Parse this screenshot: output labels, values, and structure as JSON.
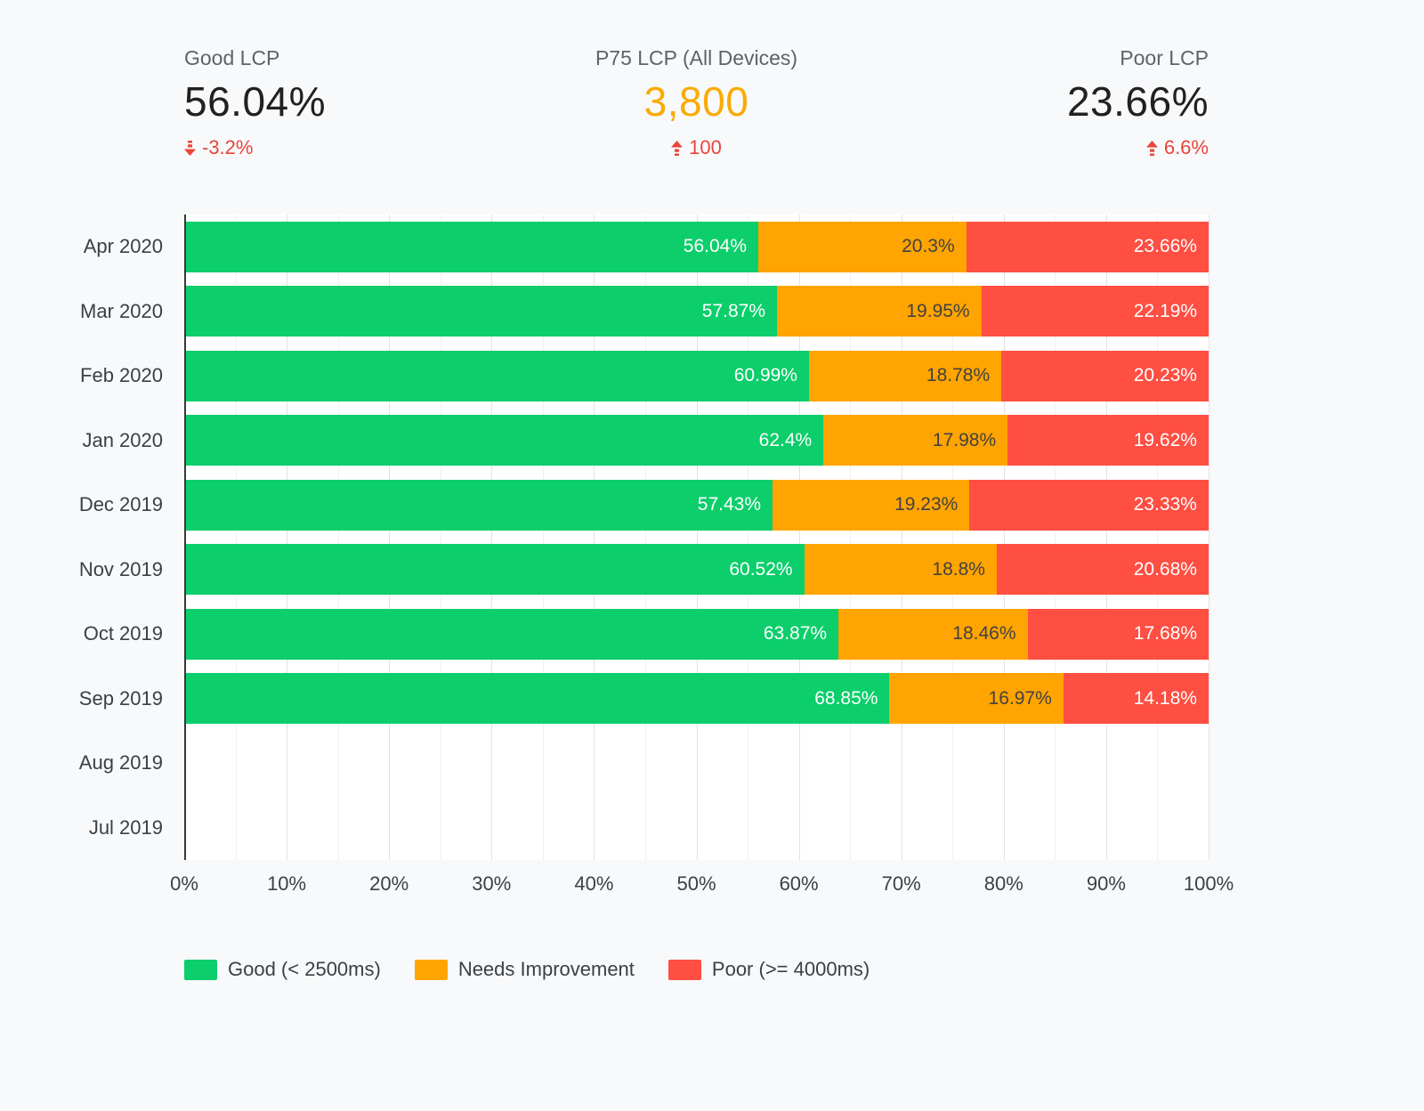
{
  "styles": {
    "page_background": "#f8f9fa",
    "plot_background": "#ffffff",
    "negative_color": "#e8453c",
    "text_primary": "#212121",
    "text_secondary": "#5f6368",
    "axis_text": "#3c4043",
    "good_color": "#0cce6b",
    "needs_improvement_color": "#ffa400",
    "poor_color": "#ff4e42",
    "p75_accent_color": "#f9ab00"
  },
  "kpis": [
    {
      "label": "Good LCP",
      "value": "56.04%",
      "delta": "-3.2%",
      "direction": "down",
      "value_color": "#212121"
    },
    {
      "label": "P75 LCP (All Devices)",
      "value": "3,800",
      "delta": "100",
      "direction": "up",
      "value_color": "#f9ab00"
    },
    {
      "label": "Poor LCP",
      "value": "23.66%",
      "delta": "6.6%",
      "direction": "up",
      "value_color": "#212121"
    }
  ],
  "chart_data": {
    "type": "bar",
    "orientation": "horizontal",
    "stacked": true,
    "categories": [
      "Apr 2020",
      "Mar 2020",
      "Feb 2020",
      "Jan 2020",
      "Dec 2019",
      "Nov 2019",
      "Oct 2019",
      "Sep 2019",
      "Aug 2019",
      "Jul 2019"
    ],
    "series": [
      {
        "name": "Good (< 2500ms)",
        "color": "#0cce6b",
        "label_color": "#ffffff",
        "values": [
          56.04,
          57.87,
          60.99,
          62.4,
          57.43,
          60.52,
          63.87,
          68.85,
          null,
          null
        ]
      },
      {
        "name": "Needs Improvement",
        "color": "#ffa400",
        "label_color": "#424242",
        "values": [
          20.3,
          19.95,
          18.78,
          17.98,
          19.23,
          18.8,
          18.46,
          16.97,
          null,
          null
        ]
      },
      {
        "name": "Poor (>= 4000ms)",
        "color": "#ff4e42",
        "label_color": "#ffffff",
        "values": [
          23.66,
          22.19,
          20.23,
          19.62,
          23.33,
          20.68,
          17.68,
          14.18,
          null,
          null
        ]
      }
    ],
    "x_ticks": [
      "0%",
      "10%",
      "20%",
      "30%",
      "40%",
      "50%",
      "60%",
      "70%",
      "80%",
      "90%",
      "100%"
    ],
    "xlim": [
      0,
      100
    ],
    "grid": true,
    "legend_position": "bottom"
  }
}
